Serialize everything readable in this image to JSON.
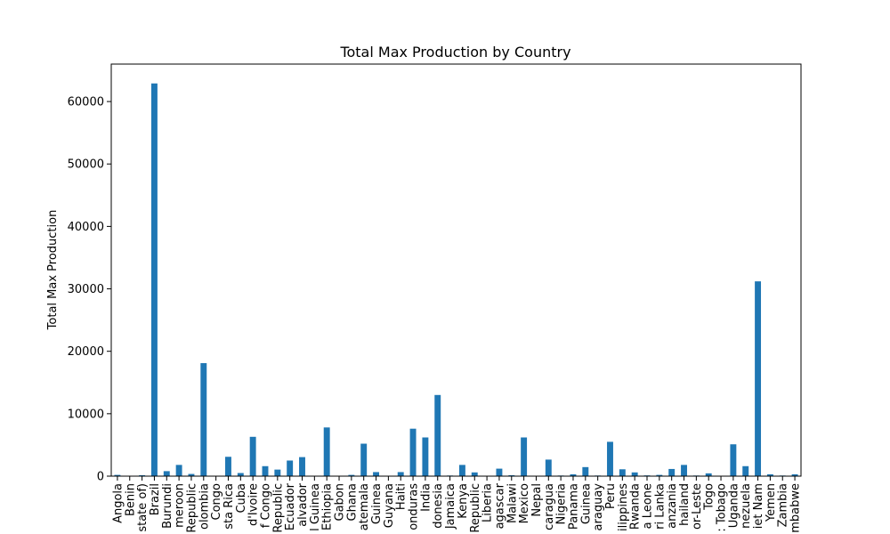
{
  "chart_data": {
    "type": "bar",
    "title": "Total Max Production by Country",
    "xlabel": "",
    "ylabel": "Total Max Production",
    "ylim": [
      0,
      66000
    ],
    "yticks": [
      0,
      10000,
      20000,
      30000,
      40000,
      50000,
      60000
    ],
    "grid": false,
    "legend": "none",
    "color": "#1f77b4",
    "categories": [
      "Angola",
      "Benin",
      "state of)",
      "Brazil",
      "Burundi",
      "meroon",
      "Republic",
      "olombia",
      "Congo",
      "sta Rica",
      "Cuba",
      "d'Ivoire",
      "f Congo",
      "Republic",
      "Ecuador",
      "alvador",
      "l Guinea",
      "Ethiopia",
      "Gabon",
      "Ghana",
      "atemala",
      "Guinea",
      "Guyana",
      "Haiti",
      "onduras",
      "India",
      "donesia",
      "Jamaica",
      "Kenya",
      "Republic",
      "Liberia",
      "agascar",
      "Malawi",
      "Mexico",
      "Nepal",
      "caragua",
      "Nigeria",
      "Panama",
      "Guinea",
      "araguay",
      "Peru",
      "ilippines",
      "Rwanda",
      "a Leone",
      "ri Lanka",
      "anzania",
      "hailand",
      "or-Leste",
      "Togo",
      ": Tobago",
      "Uganda",
      "nezuela",
      "iet Nam",
      "Yemen",
      "Zambia",
      "mbabwe"
    ],
    "values": [
      200,
      50,
      150,
      62900,
      800,
      1800,
      350,
      18100,
      30,
      3100,
      500,
      6300,
      1600,
      1050,
      2500,
      3050,
      50,
      7800,
      40,
      200,
      5200,
      650,
      40,
      650,
      7600,
      6200,
      13000,
      100,
      1800,
      600,
      60,
      1200,
      150,
      6200,
      40,
      2650,
      100,
      300,
      1450,
      100,
      5500,
      1100,
      600,
      120,
      200,
      1150,
      1800,
      100,
      450,
      40,
      5100,
      1600,
      31200,
      300,
      100,
      300
    ]
  }
}
